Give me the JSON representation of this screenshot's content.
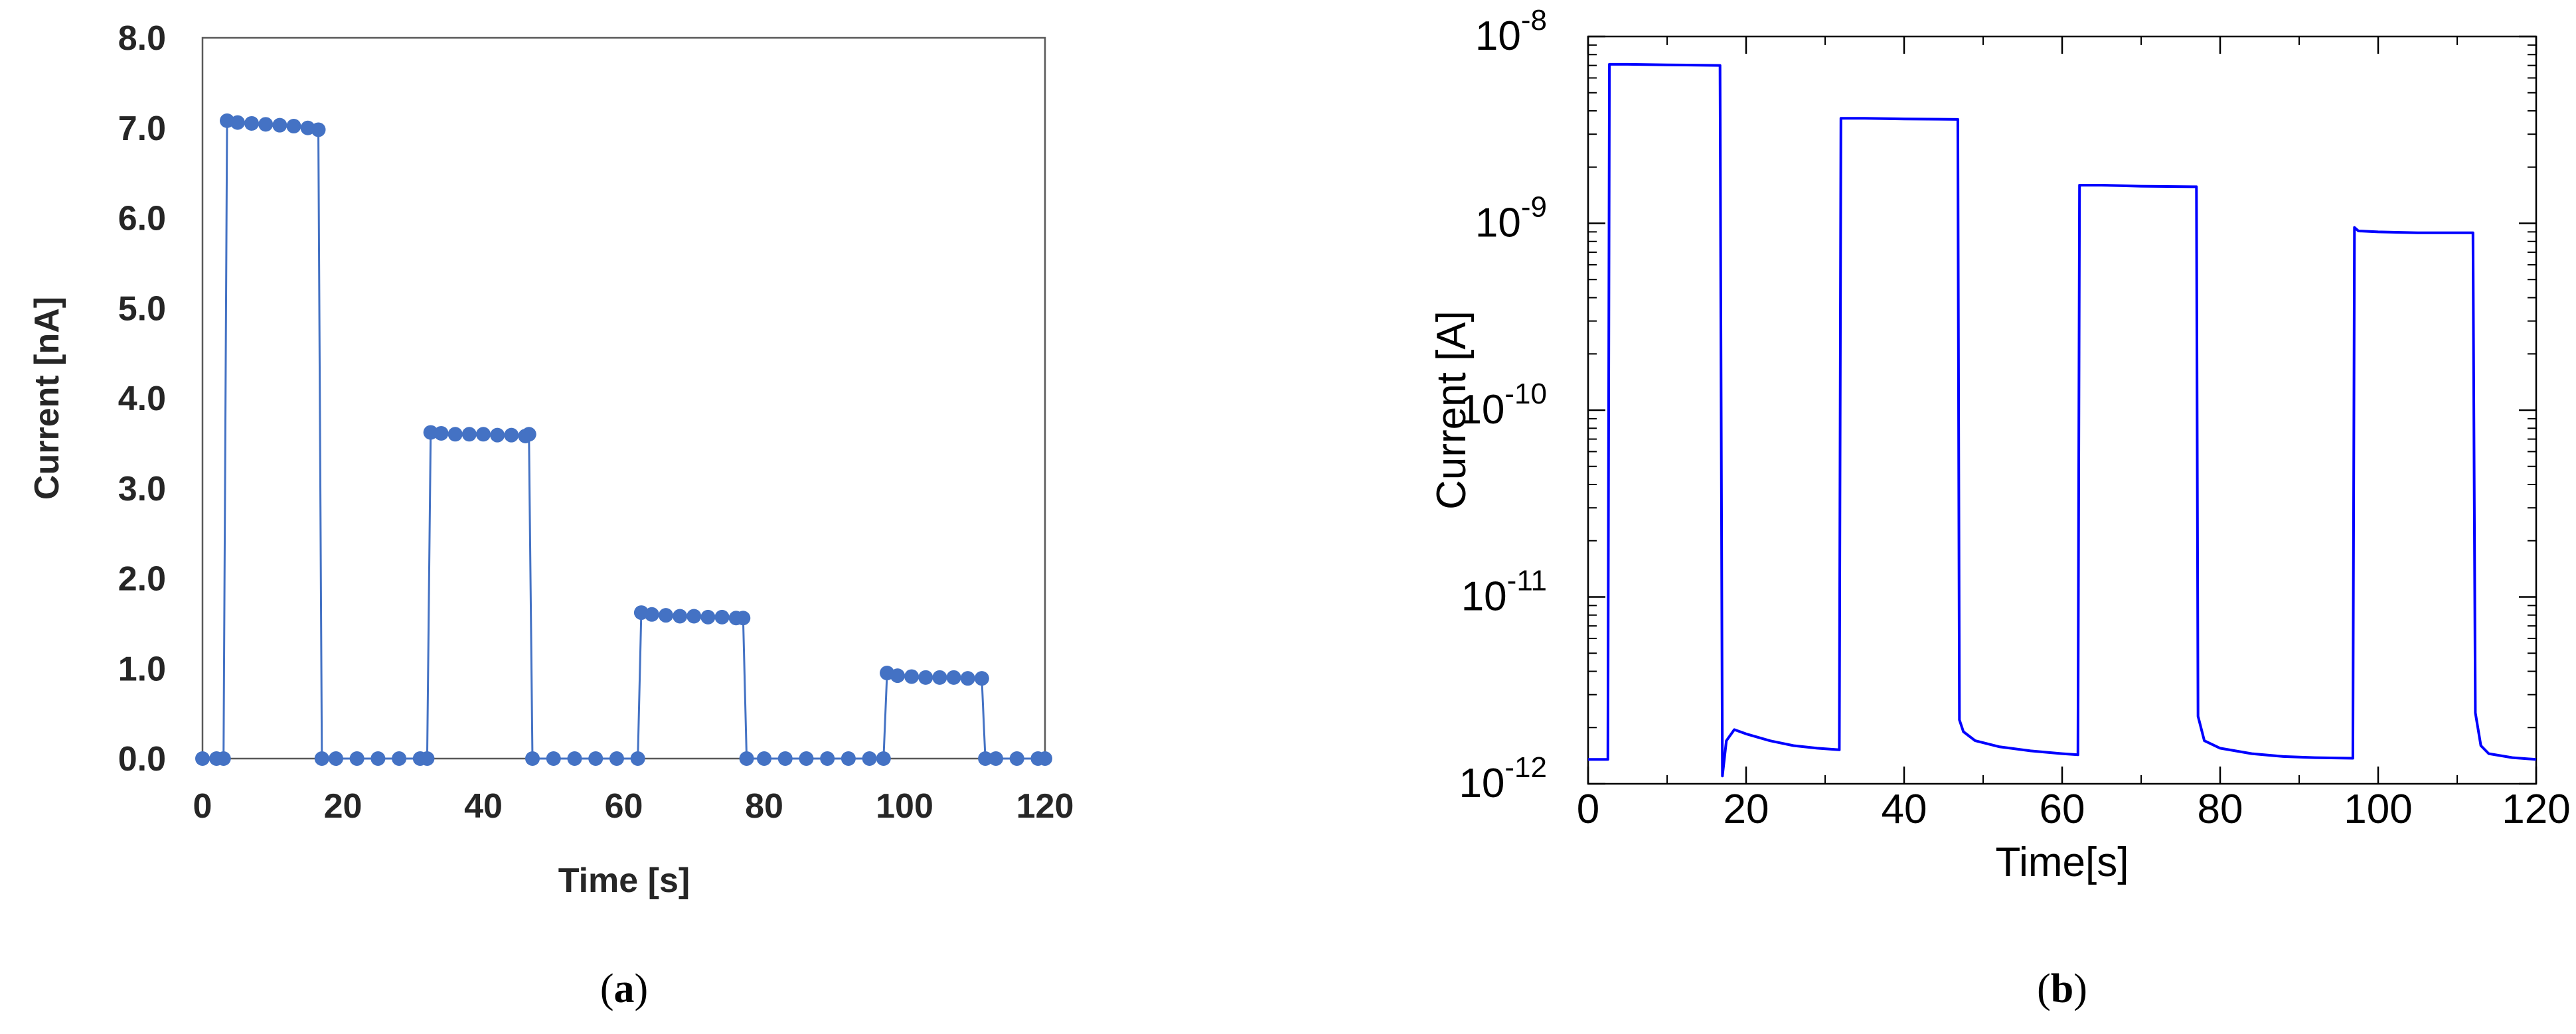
{
  "figure": {
    "panel_a_label": "a",
    "panel_b_label": "b"
  },
  "chart_data": [
    {
      "type": "scatter",
      "panel": "a",
      "title": "",
      "xlabel": "Time [s]",
      "ylabel": "Current [nA]",
      "xlim": [
        0,
        120
      ],
      "ylim": [
        0,
        8
      ],
      "yscale": "linear",
      "xticks": [
        0,
        20,
        40,
        60,
        80,
        100,
        120
      ],
      "xtick_labels": [
        "0",
        "20",
        "40",
        "60",
        "80",
        "100",
        "120"
      ],
      "yticks": [
        0,
        1,
        2,
        3,
        4,
        5,
        6,
        7,
        8
      ],
      "ytick_labels": [
        "0.0",
        "1.0",
        "2.0",
        "3.0",
        "4.0",
        "5.0",
        "6.0",
        "7.0",
        "8.0"
      ],
      "grid": false,
      "color": "#4472c4",
      "series": [
        {
          "x": [
            0,
            2,
            3,
            3.5,
            5,
            7,
            9,
            11,
            13,
            15,
            16.5,
            17,
            19,
            22,
            25,
            28,
            31,
            32,
            32.5,
            34,
            36,
            38,
            40,
            42,
            44,
            46,
            46.5,
            47,
            50,
            53,
            56,
            59,
            62,
            62.5,
            64,
            66,
            68,
            70,
            72,
            74,
            76,
            77,
            77.5,
            80,
            83,
            86,
            89,
            92,
            95,
            97,
            97.5,
            99,
            101,
            103,
            105,
            107,
            109,
            111,
            111.5,
            113,
            116,
            119,
            120
          ],
          "y": [
            0,
            0,
            0,
            7.08,
            7.06,
            7.05,
            7.04,
            7.03,
            7.02,
            7.0,
            6.98,
            0,
            0,
            0,
            0,
            0,
            0,
            0,
            3.62,
            3.61,
            3.6,
            3.6,
            3.6,
            3.59,
            3.59,
            3.58,
            3.6,
            0,
            0,
            0,
            0,
            0,
            0,
            1.62,
            1.6,
            1.59,
            1.58,
            1.58,
            1.57,
            1.57,
            1.56,
            1.56,
            0,
            0,
            0,
            0,
            0,
            0,
            0,
            0,
            0.95,
            0.92,
            0.91,
            0.9,
            0.9,
            0.9,
            0.89,
            0.89,
            0,
            0,
            0,
            0,
            0
          ]
        }
      ]
    },
    {
      "type": "line",
      "panel": "b",
      "title": "",
      "xlabel": "Time[s]",
      "ylabel": "Current [A]",
      "xlim": [
        0,
        120
      ],
      "ylim": [
        1e-12,
        1e-08
      ],
      "yscale": "log",
      "xticks": [
        0,
        20,
        40,
        60,
        80,
        100,
        120
      ],
      "xtick_labels": [
        "0",
        "20",
        "40",
        "60",
        "80",
        "100",
        "120"
      ],
      "ytick_bases": [
        "10",
        "10",
        "10",
        "10",
        "10"
      ],
      "ytick_exponents": [
        "-12",
        "-11",
        "-10",
        "-9",
        "-8"
      ],
      "yticks": [
        1e-12,
        1e-11,
        1e-10,
        1e-09,
        1e-08
      ],
      "grid": false,
      "color": "#0000ff",
      "series": [
        {
          "x": [
            0,
            2.5,
            2.7,
            5,
            10,
            16.7,
            17,
            17.5,
            18.5,
            20,
            23,
            26,
            29,
            31.8,
            32,
            35,
            40,
            46.8,
            47,
            47.5,
            49,
            52,
            56,
            60,
            62,
            62.2,
            65,
            70,
            77,
            77.2,
            78,
            80,
            84,
            88,
            92,
            96.8,
            97,
            97.5,
            100,
            105,
            112,
            112.3,
            113,
            114,
            117,
            120
          ],
          "y": [
            1.35e-12,
            1.35e-12,
            7.1e-09,
            7.1e-09,
            7.05e-09,
            7e-09,
            1.1e-12,
            1.7e-12,
            1.95e-12,
            1.85e-12,
            1.7e-12,
            1.6e-12,
            1.55e-12,
            1.52e-12,
            3.65e-09,
            3.65e-09,
            3.62e-09,
            3.6e-09,
            2.2e-12,
            1.9e-12,
            1.7e-12,
            1.58e-12,
            1.5e-12,
            1.45e-12,
            1.43e-12,
            1.6e-09,
            1.6e-09,
            1.58e-09,
            1.57e-09,
            2.3e-12,
            1.7e-12,
            1.55e-12,
            1.45e-12,
            1.4e-12,
            1.38e-12,
            1.37e-12,
            9.5e-10,
            9.1e-10,
            9e-10,
            8.9e-10,
            8.9e-10,
            2.4e-12,
            1.6e-12,
            1.45e-12,
            1.38e-12,
            1.35e-12
          ]
        }
      ]
    }
  ]
}
